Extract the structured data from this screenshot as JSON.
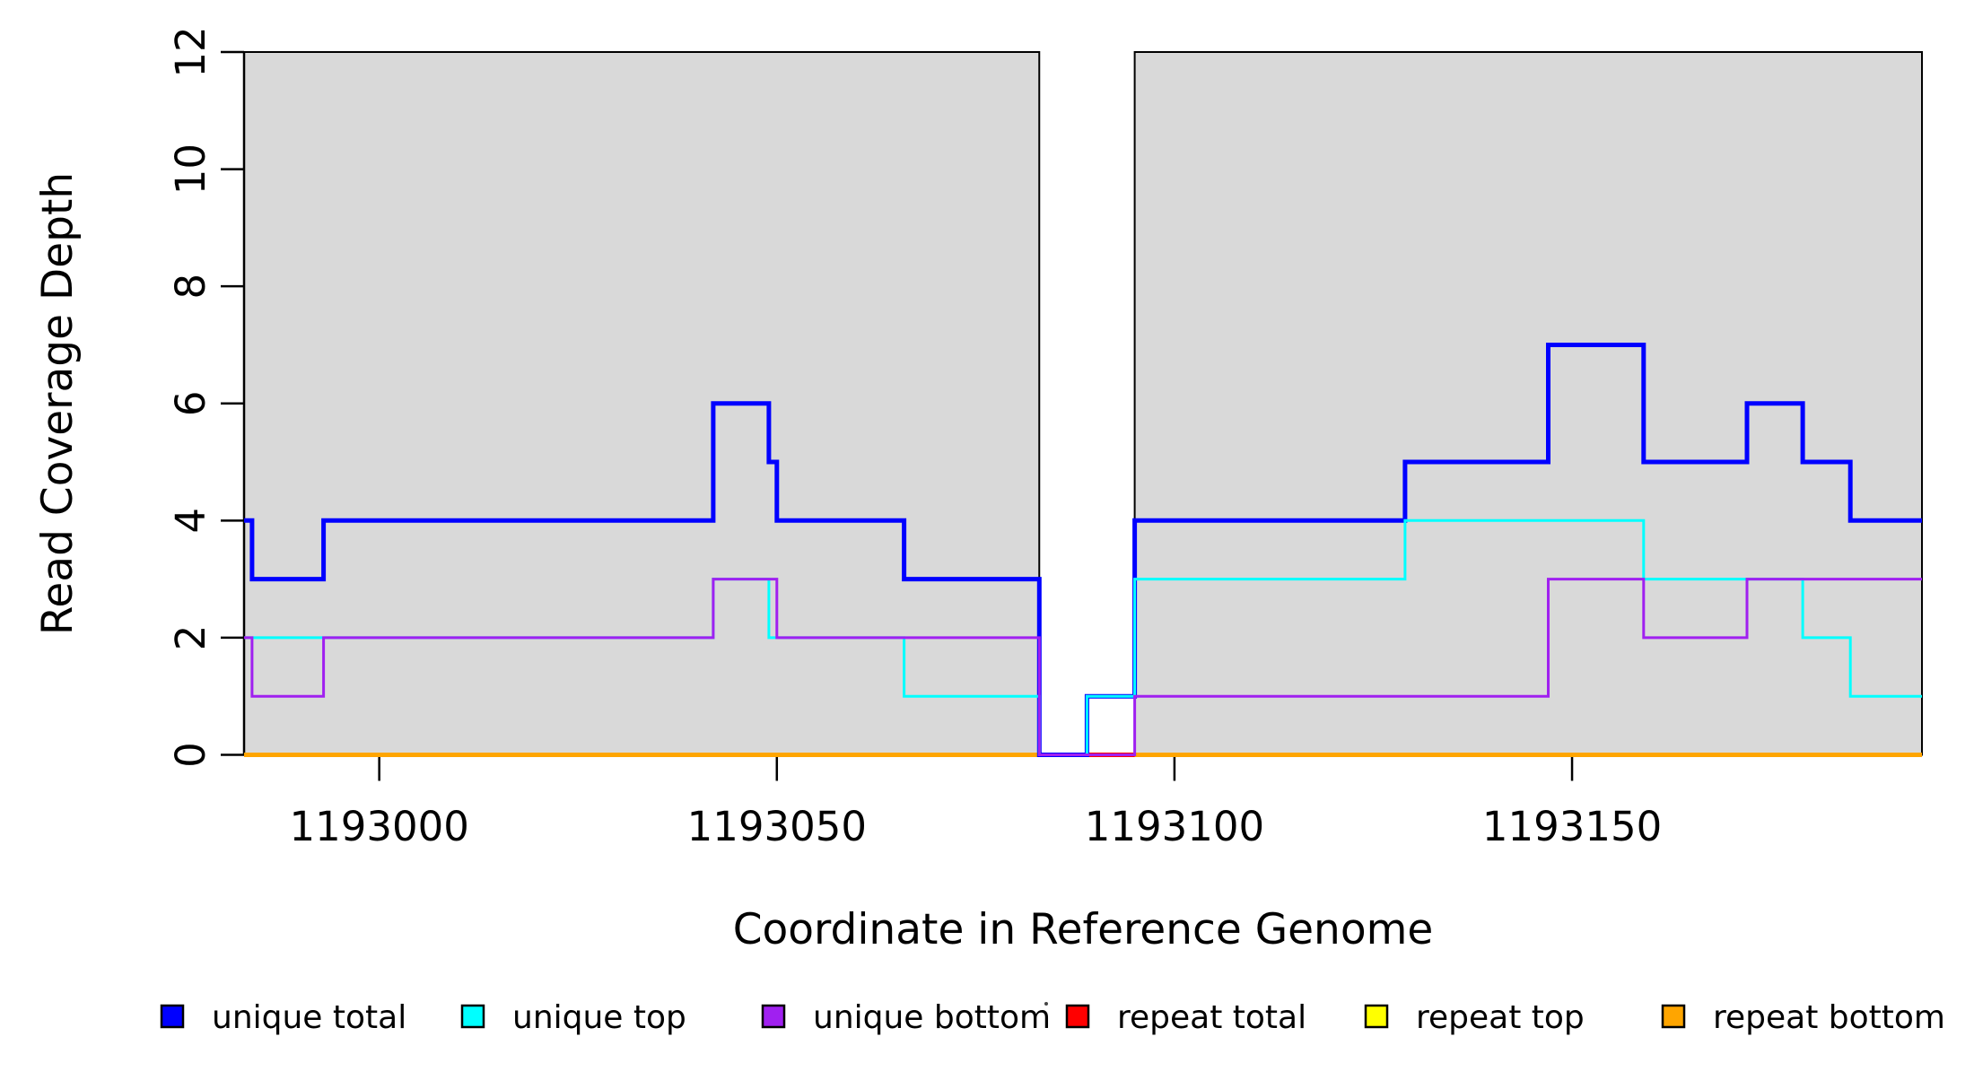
{
  "chart_data": {
    "type": "line",
    "subtype": "step-coverage-plot",
    "title": "",
    "xlabel": "Coordinate in Reference Genome",
    "ylabel": "Read Coverage Depth",
    "xlim": [
      1192983,
      1193194
    ],
    "ylim": [
      0,
      12
    ],
    "xticks": [
      1193000,
      1193050,
      1193100,
      1193150
    ],
    "yticks": [
      0,
      2,
      4,
      6,
      8,
      10,
      12
    ],
    "grid": false,
    "legend_position": "bottom",
    "shaded_fill": "#D9D9D9",
    "shaded_border": "#000000",
    "shaded_regions": [
      {
        "start": 1192983,
        "end": 1193083
      },
      {
        "start": 1193095,
        "end": 1193194
      }
    ],
    "gap_region": {
      "start": 1193083,
      "end": 1193095
    },
    "series": [
      {
        "name": "repeat top",
        "color": "#FFFF00",
        "line_width": 3,
        "clip_to_shaded": false,
        "steps": [
          [
            1192983,
            0
          ],
          [
            1193194,
            0
          ]
        ]
      },
      {
        "name": "repeat total",
        "color": "#FF0000",
        "line_width": 5,
        "clip_to_shaded": false,
        "steps": [
          [
            1192983,
            0
          ],
          [
            1193194,
            0
          ]
        ]
      },
      {
        "name": "repeat bottom",
        "color": "#FFA500",
        "line_width": 5,
        "clip_to_shaded": true,
        "steps": [
          [
            1192983,
            0
          ],
          [
            1193194,
            0
          ]
        ]
      },
      {
        "name": "unique total",
        "color": "#0000FF",
        "line_width": 5,
        "clip_to_shaded": false,
        "steps": [
          [
            1192983,
            4
          ],
          [
            1192984,
            3
          ],
          [
            1192993,
            4
          ],
          [
            1193042,
            6
          ],
          [
            1193049,
            5
          ],
          [
            1193050,
            4
          ],
          [
            1193066,
            3
          ],
          [
            1193083,
            0
          ],
          [
            1193089,
            1
          ],
          [
            1193095,
            4
          ],
          [
            1193129,
            5
          ],
          [
            1193147,
            7
          ],
          [
            1193159,
            5
          ],
          [
            1193172,
            6
          ],
          [
            1193179,
            5
          ],
          [
            1193185,
            4
          ],
          [
            1193194,
            4
          ]
        ]
      },
      {
        "name": "unique top",
        "color": "#00FFFF",
        "line_width": 3,
        "clip_to_shaded": false,
        "steps": [
          [
            1192983,
            2
          ],
          [
            1193042,
            3
          ],
          [
            1193049,
            2
          ],
          [
            1193066,
            1
          ],
          [
            1193083,
            0
          ],
          [
            1193089,
            1
          ],
          [
            1193095,
            3
          ],
          [
            1193129,
            4
          ],
          [
            1193159,
            3
          ],
          [
            1193179,
            2
          ],
          [
            1193185,
            1
          ],
          [
            1193194,
            1
          ]
        ]
      },
      {
        "name": "unique bottom",
        "color": "#A020F0",
        "line_width": 3,
        "clip_to_shaded": false,
        "steps": [
          [
            1192983,
            2
          ],
          [
            1192984,
            1
          ],
          [
            1192993,
            2
          ],
          [
            1193042,
            3
          ],
          [
            1193050,
            2
          ],
          [
            1193083,
            0
          ],
          [
            1193095,
            1
          ],
          [
            1193147,
            3
          ],
          [
            1193159,
            2
          ],
          [
            1193172,
            3
          ],
          [
            1193194,
            3
          ]
        ]
      }
    ],
    "legend": {
      "items": [
        {
          "label": "unique total",
          "color": "#0000FF"
        },
        {
          "label": "unique top",
          "color": "#00FFFF"
        },
        {
          "label": "unique bottom",
          "color": "#A020F0"
        },
        {
          "label": "repeat total",
          "color": "#FF0000"
        },
        {
          "label": "repeat top",
          "color": "#FFFF00"
        },
        {
          "label": "repeat bottom",
          "color": "#FFA500"
        }
      ]
    }
  }
}
